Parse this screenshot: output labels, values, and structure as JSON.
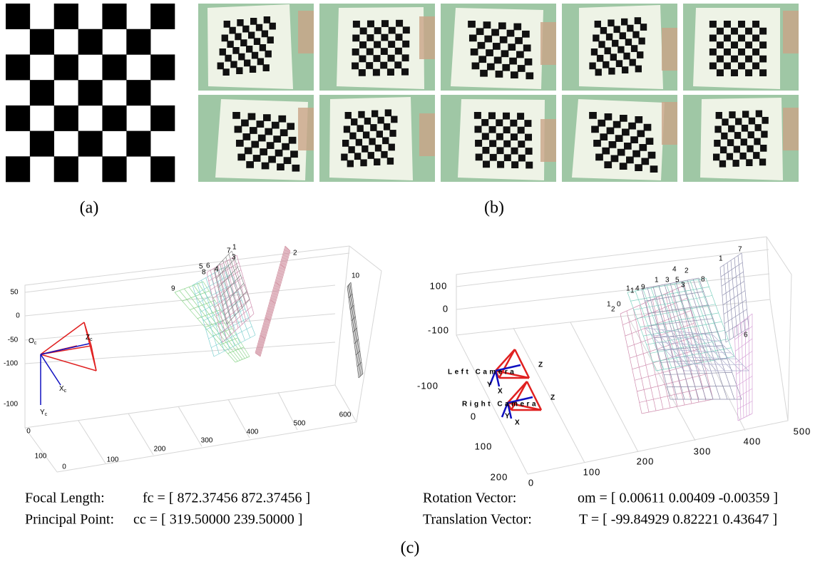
{
  "figure": {
    "a": {
      "caption": "(a)"
    },
    "b": {
      "caption": "(b)"
    },
    "c": {
      "caption": "(c)",
      "left_plot": {
        "z_ticks": [
          "50",
          "0",
          "-50",
          "-100"
        ],
        "y_ticks": [
          "-100",
          "0",
          "100"
        ],
        "x_ticks": [
          "0",
          "100",
          "200",
          "300",
          "400",
          "500",
          "600"
        ],
        "camera_axes": [
          {
            "name": "O",
            "sub": "c"
          },
          {
            "name": "Z",
            "sub": "c"
          },
          {
            "name": "X",
            "sub": "c"
          },
          {
            "name": "Y",
            "sub": "c"
          }
        ],
        "plane_labels": [
          "7",
          "1",
          "3",
          "5",
          "6",
          "8",
          "4",
          "9",
          "2",
          "10"
        ],
        "info": [
          {
            "label": "Focal Length:",
            "value": "fc = [ 872.37456  872.37456 ]"
          },
          {
            "label": "Principal Point:",
            "value": "cc = [ 319.50000  239.50000 ]"
          }
        ]
      },
      "right_plot": {
        "z_ticks": [
          "100",
          "0",
          "-100"
        ],
        "y_ticks": [
          "-100",
          "0",
          "100",
          "200"
        ],
        "x_ticks": [
          "0",
          "100",
          "200",
          "300",
          "400",
          "500"
        ],
        "cameras": [
          "Left Camera",
          "Right Camera"
        ],
        "camera_axes": [
          "Z",
          "Y",
          "X",
          "Z",
          "Y",
          "X"
        ],
        "plane_labels": [
          "1",
          "7",
          "4",
          "2",
          "1",
          "3",
          "5",
          "3",
          "8",
          "1",
          "4",
          "1",
          "9",
          "1",
          "0",
          "2",
          "6"
        ],
        "info": [
          {
            "label": "Rotation Vector:",
            "value": "om = [ 0.00611 0.00409 -0.00359 ]"
          },
          {
            "label": "Translation Vector:",
            "value": "T = [ -99.84929 0.82221 0.43647 ]"
          }
        ]
      }
    }
  }
}
